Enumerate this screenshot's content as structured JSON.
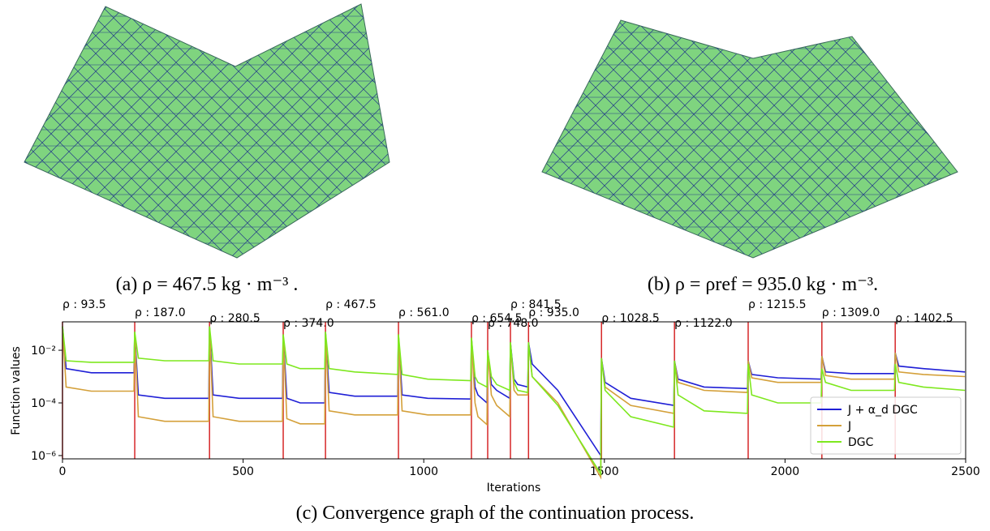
{
  "captions": {
    "a": "(a) ρ = 467.5 kg · m⁻³ .",
    "b": "(b) ρ = ρref = 935.0 kg · m⁻³."
  },
  "chart_data": {
    "type": "line",
    "caption": "(c) Convergence graph of the continuation process.",
    "x_label": "Iterations",
    "y_label": "Function values",
    "log_y": true,
    "legend": "lower right",
    "xlim": [
      0,
      2500
    ],
    "xticks": [
      0,
      500,
      1000,
      1500,
      2000,
      2500
    ],
    "ylim": [
      7.5e-07,
      0.12
    ],
    "yticks": [
      {
        "value": 0.01,
        "label": "10⁻²"
      },
      {
        "value": 0.0001,
        "label": "10⁻⁴"
      },
      {
        "value": 1e-06,
        "label": "10⁻⁶"
      }
    ],
    "annotation_color": "#d62728",
    "annotations": [
      {
        "x": 0,
        "label": "ρ : 93.5"
      },
      {
        "x": 200,
        "label": "ρ : 187.0"
      },
      {
        "x": 407,
        "label": "ρ : 280.5"
      },
      {
        "x": 611,
        "label": "ρ : 374.0"
      },
      {
        "x": 728,
        "label": "ρ : 467.5"
      },
      {
        "x": 930,
        "label": "ρ : 561.0"
      },
      {
        "x": 1132,
        "label": "ρ : 654.5"
      },
      {
        "x": 1177,
        "label": "ρ : 748.0"
      },
      {
        "x": 1240,
        "label": "ρ : 841.5"
      },
      {
        "x": 1290,
        "label": "ρ : 935.0"
      },
      {
        "x": 1492,
        "label": "ρ : 1028.5"
      },
      {
        "x": 1694,
        "label": "ρ : 1122.0"
      },
      {
        "x": 1898,
        "label": "ρ : 1215.5"
      },
      {
        "x": 2102,
        "label": "ρ : 1309.0"
      },
      {
        "x": 2305,
        "label": "ρ : 1402.5"
      }
    ],
    "x": [
      0,
      10,
      80,
      198,
      200,
      210,
      283,
      405,
      407,
      417,
      489,
      609,
      611,
      621,
      658,
      726,
      728,
      738,
      809,
      928,
      930,
      940,
      1011,
      1130,
      1132,
      1142,
      1150,
      1175,
      1177,
      1187,
      1202,
      1238,
      1240,
      1250,
      1260,
      1288,
      1290,
      1300,
      1371,
      1490,
      1492,
      1502,
      1573,
      1692,
      1694,
      1704,
      1776,
      1896,
      1898,
      1908,
      1980,
      2100,
      2102,
      2112,
      2183,
      2303,
      2305,
      2315,
      2383,
      2498
    ],
    "series": [
      {
        "name": "J + α_d DGC",
        "color": "#1f1fd6",
        "values": [
          0.08,
          0.002,
          0.0014,
          0.0014,
          0.05,
          0.0002,
          0.00015,
          0.00015,
          0.08,
          0.0002,
          0.00015,
          0.00015,
          0.04,
          0.00015,
          0.0001,
          0.0001,
          0.05,
          0.00025,
          0.00018,
          0.00018,
          0.04,
          0.0002,
          0.00015,
          0.00014,
          0.03,
          0.0004,
          0.0002,
          0.0001,
          0.01,
          0.0005,
          0.0003,
          0.00015,
          0.02,
          0.0008,
          0.0005,
          0.0004,
          0.02,
          0.003,
          0.0003,
          1e-06,
          0.005,
          0.0006,
          0.00015,
          8e-05,
          0.004,
          0.0008,
          0.0004,
          0.00035,
          0.004,
          0.0012,
          0.0009,
          0.0008,
          0.006,
          0.0015,
          0.0013,
          0.0013,
          0.008,
          0.0025,
          0.002,
          0.0015
        ]
      },
      {
        "name": "J",
        "color": "#d4a03a",
        "values": [
          0.08,
          0.0004,
          0.00028,
          0.00028,
          0.05,
          3e-05,
          2e-05,
          2e-05,
          0.08,
          3e-05,
          2e-05,
          2e-05,
          0.04,
          2.5e-05,
          1.6e-05,
          1.6e-05,
          0.05,
          5e-05,
          3.5e-05,
          3.5e-05,
          0.04,
          5e-05,
          3.5e-05,
          3.5e-05,
          0.03,
          0.0001,
          3e-05,
          1.5e-05,
          0.01,
          0.0002,
          8e-05,
          3e-05,
          0.02,
          0.0003,
          0.0002,
          0.0002,
          0.02,
          0.001,
          0.0001,
          1.5e-07,
          0.005,
          0.0004,
          8e-05,
          4e-05,
          0.004,
          0.0006,
          0.0003,
          0.00025,
          0.004,
          0.0009,
          0.0006,
          0.0006,
          0.006,
          0.0011,
          0.0008,
          0.0008,
          0.008,
          0.0015,
          0.0012,
          0.001
        ]
      },
      {
        "name": "DGC",
        "color": "#7ee81e",
        "values": [
          0.08,
          0.004,
          0.0035,
          0.0035,
          0.05,
          0.005,
          0.004,
          0.004,
          0.08,
          0.004,
          0.003,
          0.003,
          0.04,
          0.003,
          0.002,
          0.002,
          0.05,
          0.002,
          0.0015,
          0.0012,
          0.04,
          0.0012,
          0.0008,
          0.0007,
          0.03,
          0.001,
          0.0006,
          0.0004,
          0.01,
          0.001,
          0.0005,
          0.0003,
          0.02,
          0.0006,
          0.0003,
          0.00025,
          0.02,
          0.001,
          8e-05,
          2e-07,
          0.005,
          0.0003,
          3e-05,
          1.2e-05,
          0.004,
          0.0002,
          5e-05,
          4e-05,
          0.003,
          0.0002,
          0.0001,
          0.0001,
          0.002,
          0.0006,
          0.0003,
          0.0003,
          0.003,
          0.0006,
          0.0004,
          0.0003
        ]
      }
    ]
  }
}
